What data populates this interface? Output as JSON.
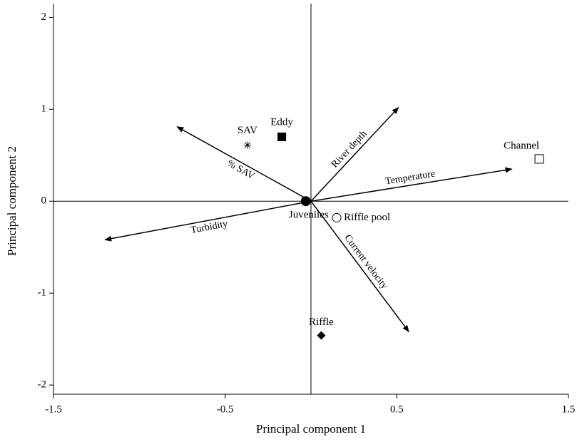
{
  "chart_data": {
    "type": "biplot",
    "x_label": "Principal component 1",
    "y_label": "Principal component 2",
    "xlim": [
      -1.5,
      1.5
    ],
    "ylim": [
      -2.1,
      2.15
    ],
    "xticks": [
      -1.5,
      -0.5,
      0.5,
      1.5
    ],
    "yticks": [
      -2,
      -1,
      0,
      1,
      2
    ],
    "series": [
      {
        "name": "Juveniles",
        "marker": "filled-circle",
        "x": [
          -0.03
        ],
        "values": [
          0
        ]
      },
      {
        "name": "SAV",
        "marker": "asterisk",
        "x": [
          -0.37
        ],
        "values": [
          0.61
        ]
      },
      {
        "name": "Eddy",
        "marker": "filled-square",
        "x": [
          -0.17
        ],
        "values": [
          0.7
        ]
      },
      {
        "name": "Channel",
        "marker": "open-square",
        "x": [
          1.33
        ],
        "values": [
          0.46
        ]
      },
      {
        "name": "Riffle pool",
        "marker": "open-circle",
        "x": [
          0.15
        ],
        "values": [
          -0.18
        ]
      },
      {
        "name": "Riffle",
        "marker": "filled-diamond",
        "x": [
          0.06
        ],
        "values": [
          -1.46
        ]
      }
    ],
    "vectors": [
      {
        "name": "% SAV",
        "x": -0.78,
        "y": 0.81
      },
      {
        "name": "Turbidity",
        "x": -1.2,
        "y": -0.42
      },
      {
        "name": "River depth",
        "x": 0.51,
        "y": 1.02
      },
      {
        "name": "Temperature",
        "x": 1.17,
        "y": 0.35
      },
      {
        "name": "Current velocity",
        "x": 0.57,
        "y": -1.42
      }
    ],
    "color": "#000000"
  }
}
